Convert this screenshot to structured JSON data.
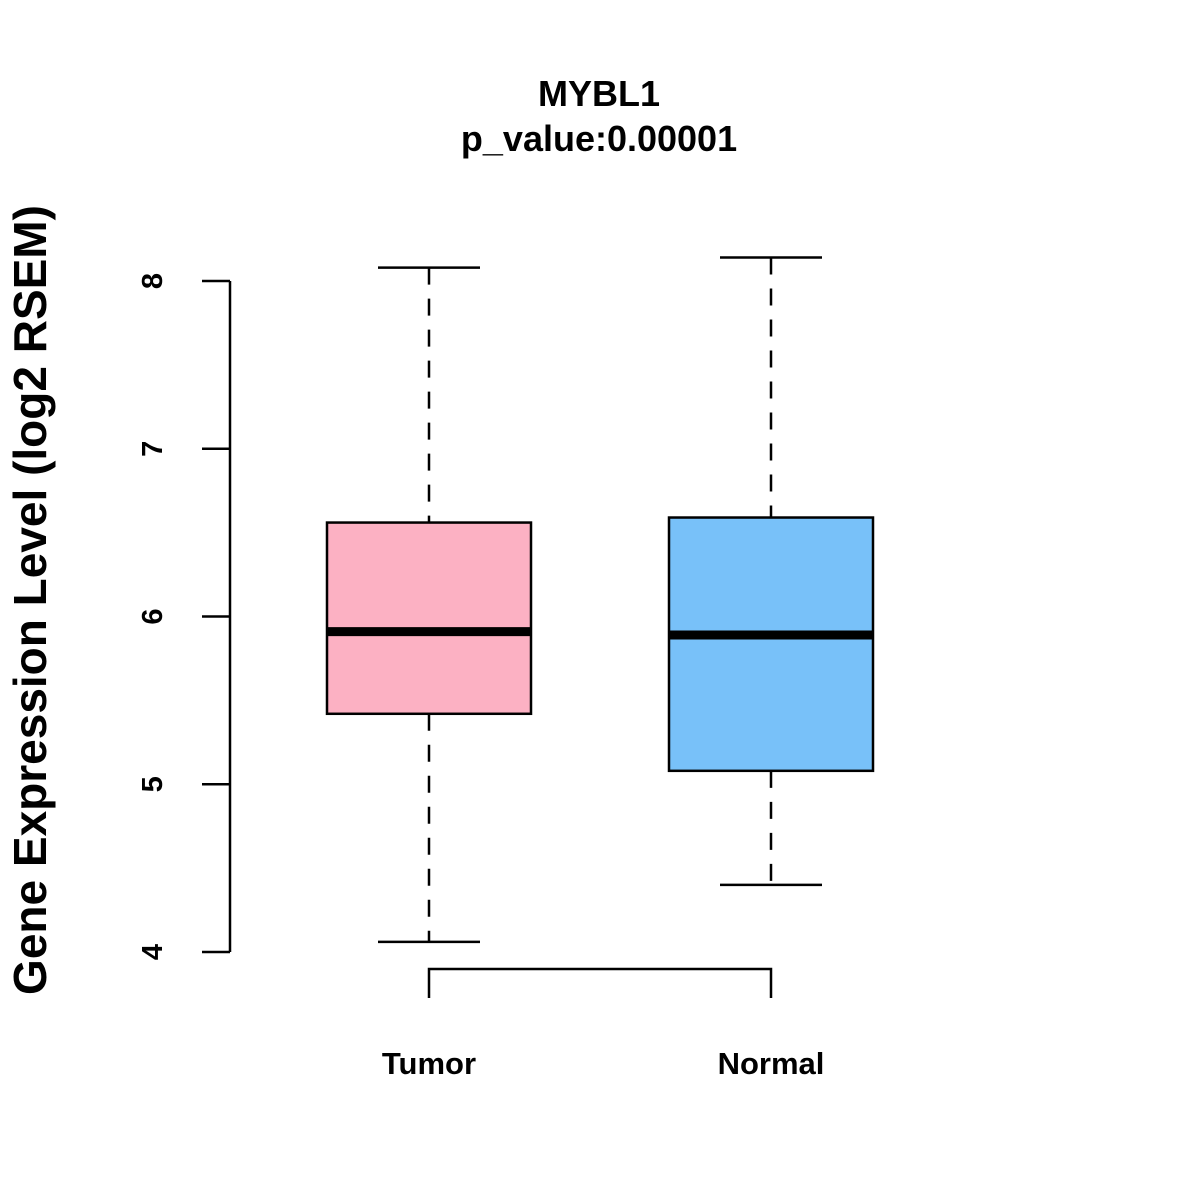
{
  "chart_data": {
    "type": "boxplot",
    "title": "MYBL1",
    "subtitle": "p_value:0.00001",
    "ylabel": "Gene Expression Level (log2 RSEM)",
    "xlabel": "",
    "ylim": [
      4,
      8
    ],
    "yticks": [
      "4",
      "5",
      "6",
      "7",
      "8"
    ],
    "categories": [
      "Tumor",
      "Normal"
    ],
    "series": [
      {
        "name": "Tumor",
        "min": 4.06,
        "q1": 5.42,
        "median": 5.91,
        "q3": 6.56,
        "max": 8.08,
        "color": "#FCB1C3"
      },
      {
        "name": "Normal",
        "min": 4.4,
        "q1": 5.08,
        "median": 5.89,
        "q3": 6.59,
        "max": 8.14,
        "color": "#78C1F9"
      }
    ],
    "comparison_bracket": {
      "between": [
        "Tumor",
        "Normal"
      ]
    }
  }
}
